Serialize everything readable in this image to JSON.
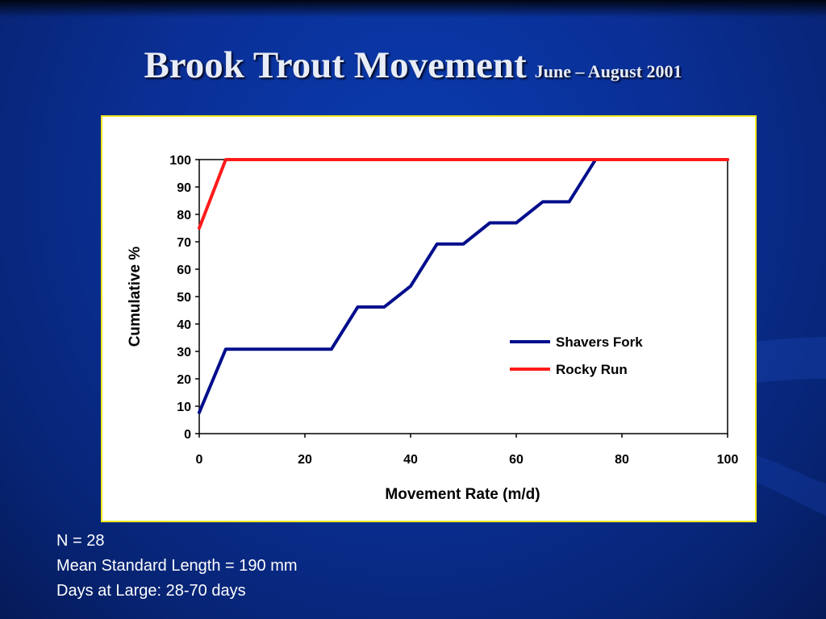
{
  "slide": {
    "title": "Brook Trout Movement",
    "subtitle": "June – August 2001"
  },
  "notes": [
    "N = 28",
    "Mean Standard Length = 190 mm",
    "Days at Large: 28-70 days"
  ],
  "colors": {
    "background": "#0a2f96",
    "chart_border": "#f3e91d",
    "shavers_fork": "#000e8c",
    "rocky_run": "#ff1a1a"
  },
  "chart_data": {
    "type": "line",
    "xlabel": "Movement Rate (m/d)",
    "ylabel": "Cumulative %",
    "xlim": [
      0,
      100
    ],
    "ylim": [
      0,
      100
    ],
    "xticks": [
      0,
      20,
      40,
      60,
      80,
      100
    ],
    "yticks": [
      0,
      10,
      20,
      30,
      40,
      50,
      60,
      70,
      80,
      90,
      100
    ],
    "grid": false,
    "legend_position": "right-middle",
    "series": [
      {
        "name": "Shavers Fork",
        "color": "#000e8c",
        "points": [
          [
            0,
            7.7
          ],
          [
            5,
            30.8
          ],
          [
            10,
            30.8
          ],
          [
            15,
            30.8
          ],
          [
            20,
            30.8
          ],
          [
            25,
            30.8
          ],
          [
            30,
            46.2
          ],
          [
            35,
            46.2
          ],
          [
            40,
            53.8
          ],
          [
            45,
            69.2
          ],
          [
            50,
            69.2
          ],
          [
            55,
            76.9
          ],
          [
            60,
            76.9
          ],
          [
            65,
            84.6
          ],
          [
            70,
            84.6
          ],
          [
            75,
            100
          ],
          [
            80,
            100
          ],
          [
            85,
            100
          ],
          [
            90,
            100
          ],
          [
            95,
            100
          ],
          [
            100,
            100
          ]
        ]
      },
      {
        "name": "Rocky Run",
        "color": "#ff1a1a",
        "points": [
          [
            0,
            75
          ],
          [
            5,
            100
          ],
          [
            10,
            100
          ],
          [
            15,
            100
          ],
          [
            20,
            100
          ],
          [
            25,
            100
          ],
          [
            30,
            100
          ],
          [
            35,
            100
          ],
          [
            40,
            100
          ],
          [
            45,
            100
          ],
          [
            50,
            100
          ],
          [
            55,
            100
          ],
          [
            60,
            100
          ],
          [
            65,
            100
          ],
          [
            70,
            100
          ],
          [
            75,
            100
          ],
          [
            80,
            100
          ],
          [
            85,
            100
          ],
          [
            90,
            100
          ],
          [
            95,
            100
          ],
          [
            100,
            100
          ]
        ]
      }
    ]
  }
}
